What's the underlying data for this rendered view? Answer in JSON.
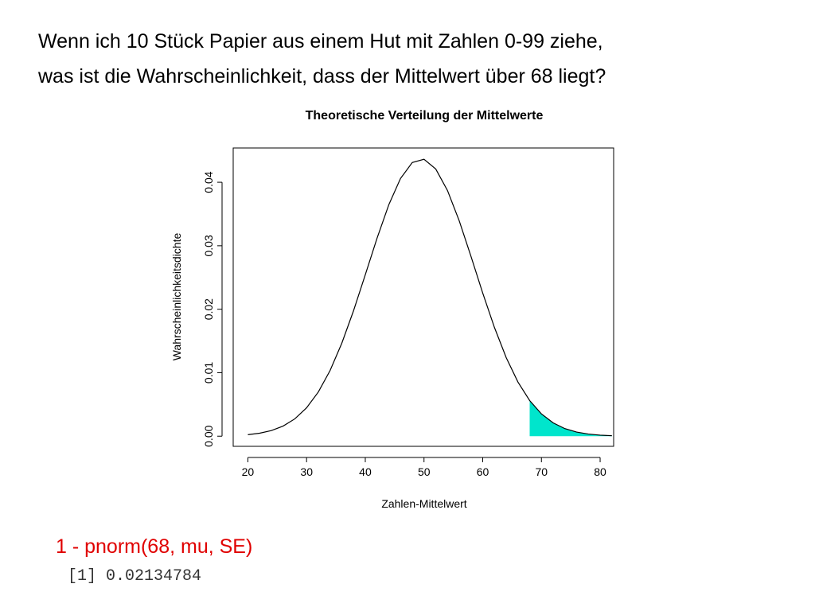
{
  "slide": {
    "title_lines": [
      "Wenn ich 10 Stück Papier aus einem Hut mit Zahlen 0-99 ziehe,",
      "was ist die Wahrscheinlichkeit, dass der Mittelwert über 68 liegt?"
    ],
    "code": "1 - pnorm(68, mu, SE)",
    "output": "[1] 0.02134784"
  },
  "chart_data": {
    "type": "line",
    "title": "Theoretische Verteilung der Mittelwerte",
    "x_label": "Zahlen-Mittelwert",
    "y_label": "Wahrscheinlichkeitsdichte",
    "x": [
      20,
      22,
      24,
      26,
      28,
      30,
      32,
      34,
      36,
      38,
      40,
      42,
      44,
      46,
      48,
      50,
      52,
      54,
      56,
      58,
      60,
      62,
      64,
      66,
      68,
      70,
      72,
      74,
      76,
      78,
      80,
      82
    ],
    "values": [
      0.000236,
      0.000468,
      0.000884,
      0.00159,
      0.00273,
      0.00447,
      0.00696,
      0.01034,
      0.01465,
      0.01977,
      0.02543,
      0.03118,
      0.03645,
      0.0406,
      0.04311,
      0.04363,
      0.04209,
      0.0387,
      0.03392,
      0.02833,
      0.02255,
      0.01712,
      0.01238,
      0.00853,
      0.00561,
      0.00351,
      0.0021,
      0.00119,
      0.000647,
      0.000335,
      0.000165,
      7.74e-05
    ],
    "color": "#000000",
    "fill_from": 68,
    "fill_color": "#00e5cc",
    "xlim": [
      17.5,
      82.3
    ],
    "ylim": [
      -0.0016,
      0.0454
    ],
    "xticks": [
      20,
      30,
      40,
      50,
      60,
      70,
      80
    ],
    "yticks": [
      {
        "value": 0,
        "label": "0.00"
      },
      0.01,
      0.02,
      0.03,
      0.04
    ]
  }
}
